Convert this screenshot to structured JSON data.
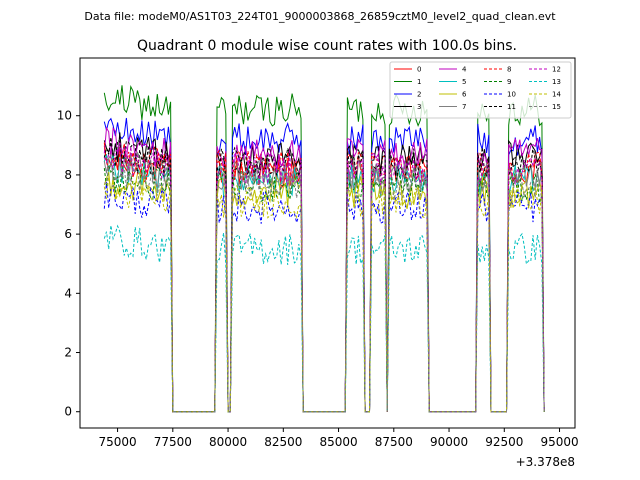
{
  "figure": {
    "suptitle": "Data file: modeM0/AS1T03_224T01_9000003868_26859cztM0_level2_quad_clean.evt"
  },
  "chart_data": {
    "type": "line",
    "title": "Quadrant 0 module wise count rates with 100.0s bins.",
    "xlabel": "",
    "ylabel": "",
    "x_offset_label": "+3.378e8",
    "xlim": [
      73300,
      95700
    ],
    "ylim": [
      -0.55,
      11.95
    ],
    "x_ticks": [
      75000,
      77500,
      80000,
      82500,
      85000,
      87500,
      90000,
      92500,
      95000
    ],
    "x_tick_labels": [
      "75000",
      "77500",
      "80000",
      "82500",
      "85000",
      "87500",
      "90000",
      "92500",
      "95000"
    ],
    "y_ticks": [
      0,
      2,
      4,
      6,
      8,
      10
    ],
    "y_tick_labels": [
      "0",
      "2",
      "4",
      "6",
      "8",
      "10"
    ],
    "legend_location": "upper right",
    "legend_columns": 4,
    "bin_width_s": 100,
    "on_intervals": [
      [
        74400,
        77400
      ],
      [
        79500,
        79900
      ],
      [
        80200,
        83300
      ],
      [
        85400,
        86100
      ],
      [
        86500,
        87100
      ],
      [
        87300,
        89000
      ],
      [
        91300,
        91800
      ],
      [
        92700,
        94200
      ]
    ],
    "gap_level": 0,
    "series": [
      {
        "name": "0",
        "color": "#ff0000",
        "style": "solid",
        "level": 8.1
      },
      {
        "name": "1",
        "color": "#008000",
        "style": "solid",
        "level": 10.2
      },
      {
        "name": "2",
        "color": "#0000ff",
        "style": "solid",
        "level": 9.2
      },
      {
        "name": "3",
        "color": "#000000",
        "style": "solid",
        "level": 8.6
      },
      {
        "name": "4",
        "color": "#bf00bf",
        "style": "solid",
        "level": 8.7
      },
      {
        "name": "5",
        "color": "#00bfbf",
        "style": "solid",
        "level": 7.8
      },
      {
        "name": "6",
        "color": "#bfbf00",
        "style": "solid",
        "level": 7.4
      },
      {
        "name": "7",
        "color": "#808080",
        "style": "solid",
        "level": 8.0
      },
      {
        "name": "8",
        "color": "#ff0000",
        "style": "dashed",
        "level": 8.3
      },
      {
        "name": "9",
        "color": "#008000",
        "style": "dashed",
        "level": 7.6
      },
      {
        "name": "10",
        "color": "#0000ff",
        "style": "dashed",
        "level": 6.9
      },
      {
        "name": "11",
        "color": "#000000",
        "style": "dashed",
        "level": 8.4
      },
      {
        "name": "12",
        "color": "#bf00bf",
        "style": "dashed",
        "level": 8.2
      },
      {
        "name": "13",
        "color": "#00bfbf",
        "style": "dashed",
        "level": 5.5
      },
      {
        "name": "14",
        "color": "#bfbf00",
        "style": "dashed",
        "level": 7.1
      },
      {
        "name": "15",
        "color": "#808080",
        "style": "dashed",
        "level": 7.7
      }
    ]
  }
}
